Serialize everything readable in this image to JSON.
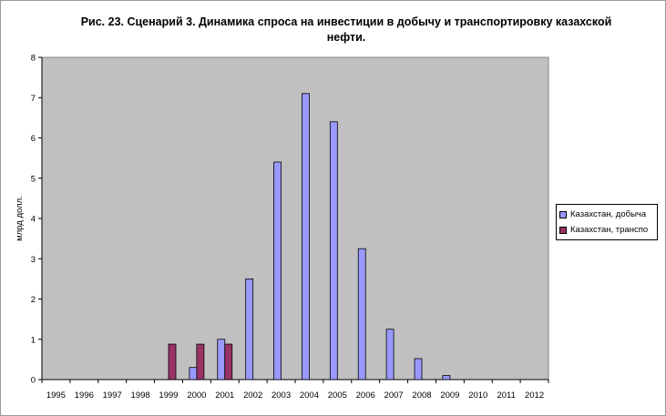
{
  "chart_data": {
    "type": "bar",
    "title": "Рис. 23. Сценарий 3. Динамика спроса на инвестиции в добычу и транспортировку казахской нефти.",
    "ylabel": "млрд долл.",
    "xlabel": "",
    "ylim": [
      0,
      8
    ],
    "yticks": [
      "0",
      "1",
      "2",
      "3",
      "4",
      "5",
      "6",
      "7",
      "8"
    ],
    "grid": false,
    "legend_position": "right",
    "plot_background": "#c0c0c0",
    "categories": [
      "1995",
      "1996",
      "1997",
      "1998",
      "1999",
      "2000",
      "2001",
      "2002",
      "2003",
      "2004",
      "2005",
      "2006",
      "2007",
      "2008",
      "2009",
      "2010",
      "2011",
      "2012"
    ],
    "series": [
      {
        "name": "Казахстан, добыча",
        "color": "#9999ff",
        "values": [
          0,
          0,
          0,
          0,
          0,
          0.3,
          1.0,
          2.5,
          5.4,
          7.1,
          6.4,
          3.25,
          1.25,
          0.52,
          0.1,
          0,
          0,
          0
        ]
      },
      {
        "name": "Казахстан, транспо",
        "color": "#993366",
        "values": [
          0,
          0,
          0,
          0,
          0.88,
          0.88,
          0.88,
          0,
          0,
          0,
          0,
          0,
          0,
          0,
          0,
          0,
          0,
          0
        ]
      }
    ]
  }
}
